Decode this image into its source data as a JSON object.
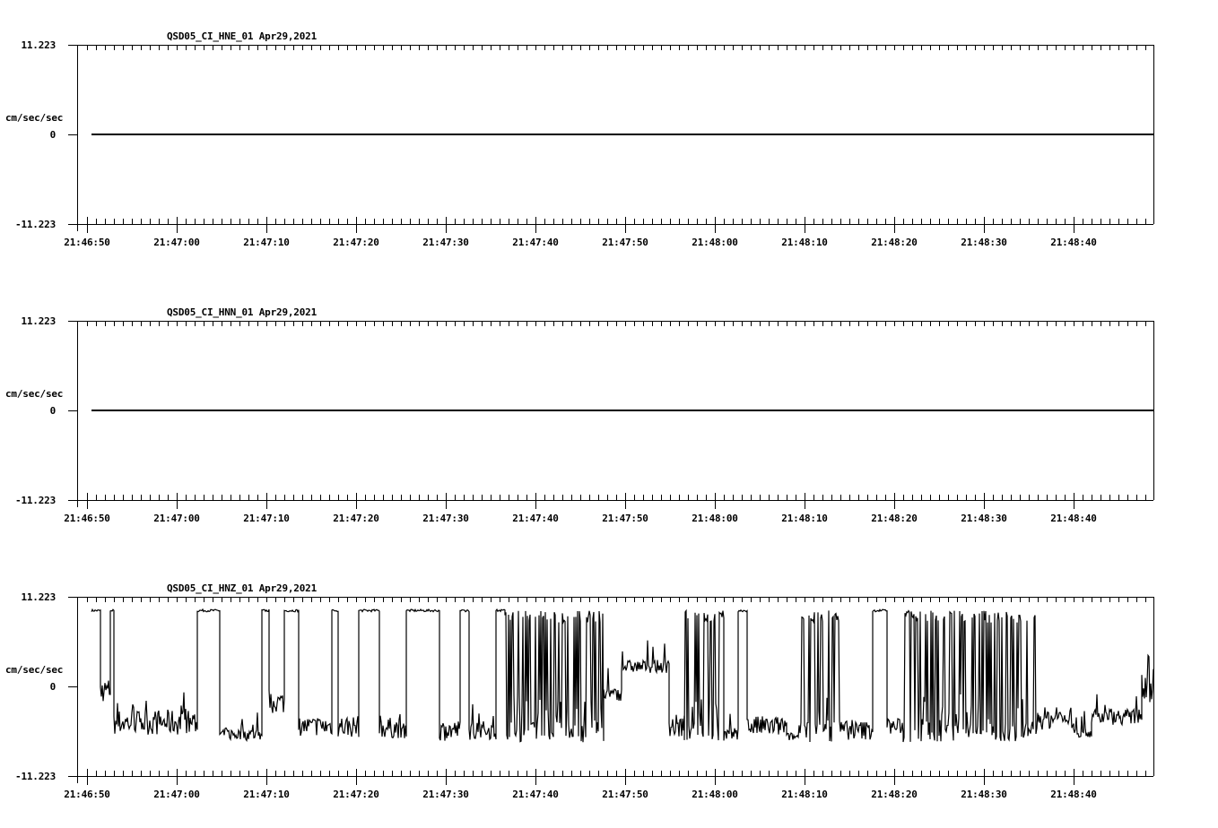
{
  "chart_data": [
    {
      "type": "line",
      "title": "QSD05_CI_HNE_01  Apr29,2021",
      "station": "QSD05_CI_HNE_01",
      "date": "Apr29,2021",
      "ylabel": "cm/sec/sec",
      "ylim": [
        -11.223,
        11.223
      ],
      "yticks": [
        "11.223",
        "0",
        "-11.223"
      ],
      "xlabel": "",
      "xticks": [
        "21:46:50",
        "21:47:00",
        "21:47:10",
        "21:47:20",
        "21:47:30",
        "21:47:40",
        "21:47:50",
        "21:48:00",
        "21:48:10",
        "21:48:20",
        "21:48:30",
        "21:48:40"
      ],
      "xrange_seconds": [
        -1,
        119
      ],
      "series": [
        {
          "name": "HNE",
          "description": "flat trace at 0 from 21:46:50.5 to end",
          "values": [
            [
              0.5,
              0
            ],
            [
              119,
              0
            ]
          ]
        }
      ]
    },
    {
      "type": "line",
      "title": "QSD05_CI_HNN_01  Apr29,2021",
      "station": "QSD05_CI_HNN_01",
      "date": "Apr29,2021",
      "ylabel": "cm/sec/sec",
      "ylim": [
        -11.223,
        11.223
      ],
      "yticks": [
        "11.223",
        "0",
        "-11.223"
      ],
      "xlabel": "",
      "xticks": [
        "21:46:50",
        "21:47:00",
        "21:47:10",
        "21:47:20",
        "21:47:30",
        "21:47:40",
        "21:47:50",
        "21:48:00",
        "21:48:10",
        "21:48:20",
        "21:48:30",
        "21:48:40"
      ],
      "xrange_seconds": [
        -1,
        119
      ],
      "series": [
        {
          "name": "HNN",
          "description": "flat trace at 0 from 21:46:50.5 to end",
          "values": [
            [
              0.5,
              0
            ],
            [
              119,
              0
            ]
          ]
        }
      ]
    },
    {
      "type": "line",
      "title": "QSD05_CI_HNZ_01  Apr29,2021",
      "station": "QSD05_CI_HNZ_01",
      "date": "Apr29,2021",
      "ylabel": "cm/sec/sec",
      "ylim": [
        -11.223,
        11.223
      ],
      "yticks": [
        "11.223",
        "0",
        "-11.223"
      ],
      "xlabel": "",
      "xticks": [
        "21:46:50",
        "21:47:00",
        "21:47:10",
        "21:47:20",
        "21:47:30",
        "21:47:40",
        "21:47:50",
        "21:48:00",
        "21:48:10",
        "21:48:20",
        "21:48:30",
        "21:48:40"
      ],
      "xrange_seconds": [
        -1,
        119
      ],
      "series": [
        {
          "name": "HNZ",
          "description": "clipped/glitchy signal alternating between ~+9.5 (saturated) and ~-4 to -7 noisy segments; time in seconds after 21:46:50, value in cm/sec/sec",
          "segments": [
            {
              "t": [
                0.5,
                1.5
              ],
              "level": 9.5,
              "noise": 0.1
            },
            {
              "t": [
                1.5,
                2.6
              ],
              "level": -0.5,
              "noise": 1.5
            },
            {
              "t": [
                2.6,
                3.0
              ],
              "level": 9.5,
              "noise": 0.1
            },
            {
              "t": [
                3.0,
                12.3
              ],
              "level": -4.5,
              "noise": 1.6
            },
            {
              "t": [
                12.3,
                14.8
              ],
              "level": 9.5,
              "noise": 0.1
            },
            {
              "t": [
                14.8,
                19.5
              ],
              "level": -6.0,
              "noise": 0.8
            },
            {
              "t": [
                19.5,
                20.3
              ],
              "level": 9.5,
              "noise": 0.1
            },
            {
              "t": [
                20.3,
                22.0
              ],
              "level": -2.0,
              "noise": 1.4
            },
            {
              "t": [
                22.0,
                23.6
              ],
              "level": 9.5,
              "noise": 0.1
            },
            {
              "t": [
                23.6,
                27.3
              ],
              "level": -5.0,
              "noise": 1.2
            },
            {
              "t": [
                27.3,
                28.0
              ],
              "level": 9.5,
              "noise": 0.1
            },
            {
              "t": [
                28.0,
                30.3
              ],
              "level": -5.0,
              "noise": 1.4
            },
            {
              "t": [
                30.3,
                32.6
              ],
              "level": 9.5,
              "noise": 0.1
            },
            {
              "t": [
                32.6,
                35.6
              ],
              "level": -5.2,
              "noise": 1.3
            },
            {
              "t": [
                35.6,
                39.3
              ],
              "level": 9.5,
              "noise": 0.1
            },
            {
              "t": [
                39.3,
                41.6
              ],
              "level": -5.5,
              "noise": 1.3
            },
            {
              "t": [
                41.6,
                42.6
              ],
              "level": 9.5,
              "noise": 0.1
            },
            {
              "t": [
                42.6,
                45.6
              ],
              "level": -5.5,
              "noise": 1.2
            },
            {
              "t": [
                45.6,
                46.6
              ],
              "level": 9.5,
              "noise": 0.1
            },
            {
              "t": [
                46.6,
                57.6
              ],
              "level": 0,
              "noise": 9,
              "dense": true
            },
            {
              "t": [
                57.6,
                59.6
              ],
              "level": -1.0,
              "noise": 0.8
            },
            {
              "t": [
                59.6,
                64.9
              ],
              "level": 2.5,
              "noise": 0.8
            },
            {
              "t": [
                64.9,
                66.6
              ],
              "level": -5.0,
              "noise": 1.5
            },
            {
              "t": [
                66.6,
                71.0
              ],
              "level": 0,
              "noise": 8,
              "dense": true
            },
            {
              "t": [
                71.0,
                72.6
              ],
              "level": -6.0,
              "noise": 0.8
            },
            {
              "t": [
                72.6,
                73.6
              ],
              "level": 9.5,
              "noise": 0.1
            },
            {
              "t": [
                73.6,
                78.0
              ],
              "level": -5.0,
              "noise": 1.3
            },
            {
              "t": [
                78.0,
                79.6
              ],
              "level": -6.3,
              "noise": 0.5
            },
            {
              "t": [
                79.6,
                84.0
              ],
              "level": 0,
              "noise": 8,
              "dense": true
            },
            {
              "t": [
                84.0,
                87.6
              ],
              "level": -5.5,
              "noise": 1.2
            },
            {
              "t": [
                87.6,
                89.2
              ],
              "level": 9.5,
              "noise": 0.1
            },
            {
              "t": [
                89.2,
                91.0
              ],
              "level": -5.0,
              "noise": 1.0
            },
            {
              "t": [
                91.0,
                106.0
              ],
              "level": 0,
              "noise": 9,
              "dense": true
            },
            {
              "t": [
                106.0,
                110.0
              ],
              "level": -4.0,
              "noise": 1.4
            },
            {
              "t": [
                110.0,
                112.0
              ],
              "level": -5.8,
              "noise": 0.6
            },
            {
              "t": [
                112.0,
                117.6
              ],
              "level": -3.8,
              "noise": 1.0
            },
            {
              "t": [
                117.6,
                119.0
              ],
              "level": 1.0,
              "noise": 3
            }
          ]
        }
      ]
    }
  ],
  "panels": [
    {
      "title": "QSD05_CI_HNE_01  Apr29,2021",
      "ymax": "11.223",
      "yzero": "0",
      "ymin": "-11.223",
      "units": "cm/sec/sec"
    },
    {
      "title": "QSD05_CI_HNN_01  Apr29,2021",
      "ymax": "11.223",
      "yzero": "0",
      "ymin": "-11.223",
      "units": "cm/sec/sec"
    },
    {
      "title": "QSD05_CI_HNZ_01  Apr29,2021",
      "ymax": "11.223",
      "yzero": "0",
      "ymin": "-11.223",
      "units": "cm/sec/sec"
    }
  ],
  "xticks": [
    "21:46:50",
    "21:47:00",
    "21:47:10",
    "21:47:20",
    "21:47:30",
    "21:47:40",
    "21:47:50",
    "21:48:00",
    "21:48:10",
    "21:48:20",
    "21:48:30",
    "21:48:40"
  ],
  "colors": {
    "trace": "#000000",
    "axes": "#000000",
    "background": "#ffffff"
  }
}
